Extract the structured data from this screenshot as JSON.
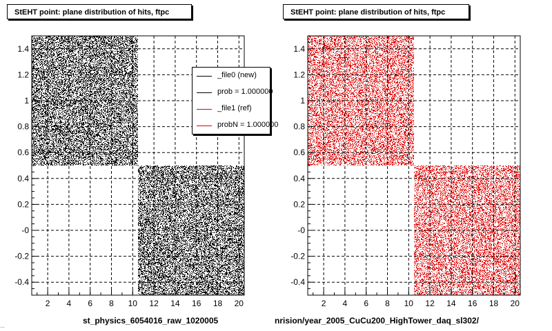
{
  "colors": {
    "new": "#000000",
    "ref": "#e00000",
    "frame": "#000000",
    "grid": "#000000"
  },
  "panels": [
    {
      "title": "StEHT point: plane distribution of hits, ftpc",
      "bottom_label": "st_physics_6054016_raw_1020005"
    },
    {
      "title": "StEHT point: plane distribution of hits, ftpc",
      "bottom_label": "nrision/year_2005_CuCu200_HighTower_daq_sl302/"
    }
  ],
  "footer_small_text": "...",
  "legend": {
    "entries": [
      {
        "label": "_file0 (new)",
        "color": "#000000"
      },
      {
        "label": "prob = 1.000000",
        "color": "#000000"
      },
      {
        "label": "_file1 (ref)",
        "color": "#e00000"
      },
      {
        "label": "probN = 1.000000",
        "color": "#e00000"
      }
    ]
  },
  "chart_data": [
    {
      "type": "scatter",
      "title": "StEHT point: plane distribution of hits, ftpc",
      "xlabel": "st_physics_6054016_raw_1020005",
      "ylabel": "",
      "xlim": [
        0.5,
        20.5
      ],
      "ylim": [
        -0.5,
        1.5
      ],
      "xticks": [
        2,
        4,
        6,
        8,
        10,
        12,
        14,
        16,
        18,
        20
      ],
      "yticks": [
        -0.4,
        -0.2,
        0,
        0.2,
        0.4,
        0.6,
        0.8,
        1,
        1.2,
        1.4
      ],
      "ytick_labels": [
        "-0.4",
        "-0.2",
        "-0",
        "0.2",
        "0.4",
        "0.6",
        "0.8",
        "1",
        "1.2",
        "1.4"
      ],
      "grid": true,
      "series": [
        {
          "name": "_file0 (new)",
          "color": "#000000",
          "regions": [
            {
              "x": [
                0.5,
                10.5
              ],
              "y": [
                0.5,
                1.5
              ]
            },
            {
              "x": [
                10.5,
                20.5
              ],
              "y": [
                -0.5,
                0.5
              ]
            }
          ]
        }
      ]
    },
    {
      "type": "scatter",
      "title": "StEHT point: plane distribution of hits, ftpc",
      "xlabel": "nrision/year_2005_CuCu200_HighTower_daq_sl302/",
      "ylabel": "",
      "xlim": [
        0.5,
        20.5
      ],
      "ylim": [
        -0.5,
        1.5
      ],
      "xticks": [
        2,
        4,
        6,
        8,
        10,
        12,
        14,
        16,
        18,
        20
      ],
      "yticks": [
        -0.4,
        -0.2,
        0,
        0.2,
        0.4,
        0.6,
        0.8,
        1,
        1.2,
        1.4
      ],
      "ytick_labels": [
        "-0.4",
        "-0.2",
        "-0",
        "0.2",
        "0.4",
        "0.6",
        "0.8",
        "1",
        "1.2",
        "1.4"
      ],
      "grid": true,
      "series": [
        {
          "name": "_file1 (ref)",
          "color": "#e00000",
          "regions": [
            {
              "x": [
                0.5,
                10.5
              ],
              "y": [
                0.5,
                1.5
              ]
            },
            {
              "x": [
                10.5,
                20.5
              ],
              "y": [
                -0.5,
                0.5
              ]
            }
          ]
        }
      ]
    }
  ]
}
